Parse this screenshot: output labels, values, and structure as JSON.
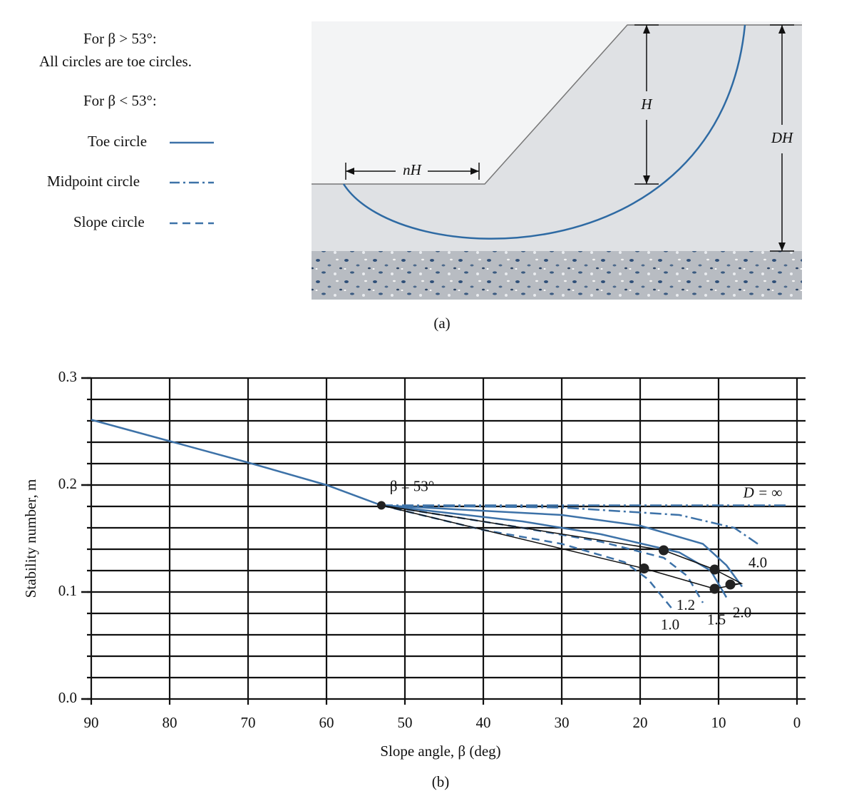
{
  "figure_a": {
    "notes": [
      "For β > 53°:",
      "All circles are toe circles.",
      "For β < 53°:"
    ],
    "legend": [
      "Toe circle",
      "Midpoint circle",
      "Slope circle"
    ],
    "dimensions": [
      "nH",
      "H",
      "DH"
    ],
    "caption": "(a)"
  },
  "chart_data": {
    "type": "line",
    "xlabel": "Slope angle, β (deg)",
    "ylabel": "Stability number, m",
    "caption": "(b)",
    "xlim": [
      90,
      0
    ],
    "ylim": [
      0,
      0.3
    ],
    "xticks": [
      90,
      80,
      70,
      60,
      50,
      40,
      30,
      20,
      10,
      0
    ],
    "yticks": [
      {
        "value": 0,
        "label": "0.0"
      },
      {
        "value": 0.1,
        "label": "0.1"
      },
      {
        "value": 0.2,
        "label": "0.2"
      },
      {
        "value": 0.3,
        "label": "0.3"
      }
    ],
    "ygrid": [
      0,
      0.02,
      0.04,
      0.06,
      0.08,
      0.1,
      0.12,
      0.14,
      0.16,
      0.18,
      0.2,
      0.22,
      0.24,
      0.26,
      0.28,
      0.3
    ],
    "grid": true,
    "color": "#3d72a8",
    "series": [
      {
        "style": "solid",
        "x": [
          90,
          80,
          70,
          60,
          53
        ],
        "values": [
          0.261,
          0.241,
          0.221,
          0.2,
          0.181
        ]
      },
      {
        "name": "D = ∞",
        "style": "dashdot",
        "x": [
          53,
          30,
          10,
          1
        ],
        "values": [
          0.181,
          0.181,
          0.181,
          0.181
        ]
      },
      {
        "name": "4.0",
        "style": "dashdot",
        "x": [
          53,
          30,
          15,
          8,
          5
        ],
        "values": [
          0.181,
          0.179,
          0.172,
          0.16,
          0.145
        ]
      },
      {
        "name": "2.0",
        "style": "solid",
        "x": [
          53,
          30,
          20,
          12,
          9,
          7
        ],
        "values": [
          0.181,
          0.172,
          0.162,
          0.145,
          0.125,
          0.105
        ]
      },
      {
        "name": "1.5",
        "style": "solid",
        "x": [
          53,
          35,
          25,
          15,
          11,
          9
        ],
        "values": [
          0.181,
          0.166,
          0.154,
          0.137,
          0.12,
          0.095
        ]
      },
      {
        "name": "1.2",
        "style": "dashed",
        "x": [
          53,
          35,
          25,
          17,
          14,
          12
        ],
        "values": [
          0.181,
          0.16,
          0.147,
          0.132,
          0.115,
          0.09
        ]
      },
      {
        "name": "1.0",
        "style": "dashed",
        "x": [
          53,
          40,
          30,
          22,
          19,
          16
        ],
        "values": [
          0.181,
          0.158,
          0.145,
          0.128,
          0.112,
          0.085
        ]
      }
    ],
    "annotation": {
      "text": "β = 53°",
      "x": 53,
      "y": 0.181
    },
    "critical_points": {
      "x": [
        17,
        19.5,
        10.5,
        10.5,
        8.5
      ],
      "values": [
        0.139,
        0.122,
        0.121,
        0.103,
        0.107
      ]
    }
  }
}
